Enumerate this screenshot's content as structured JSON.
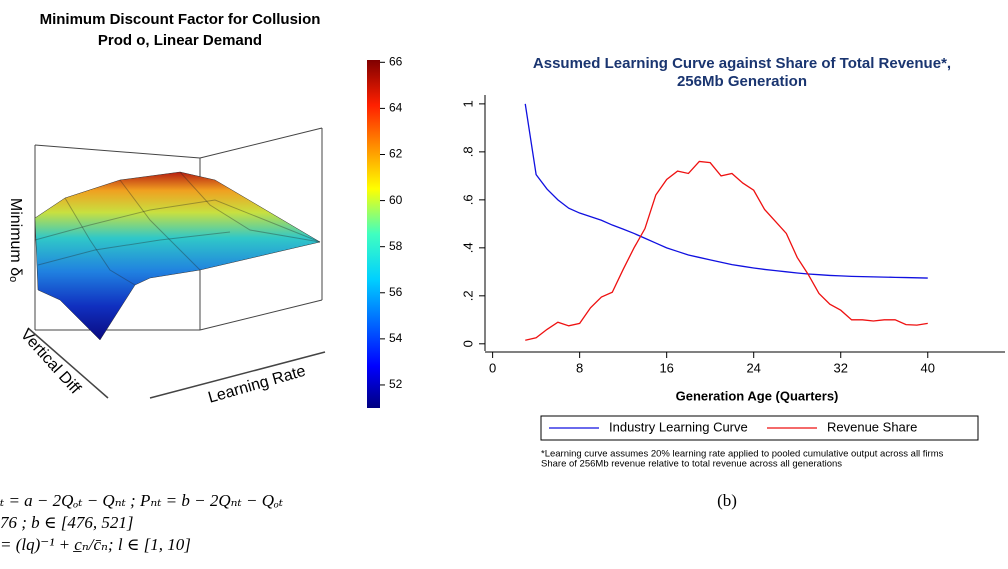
{
  "chart_data": [
    {
      "type": "surface",
      "title": [
        "Minimum Discount Factor for Collusion",
        "Prod o, Linear Demand"
      ],
      "zlabel": "Minimum δₒ",
      "xlabel": "Vertical Diff",
      "ylabel": "Learning Rate",
      "colorbar": {
        "lim": [
          51,
          66.1
        ],
        "ticks": [
          52,
          54,
          56,
          58,
          60,
          62,
          64,
          66
        ]
      }
    },
    {
      "type": "line",
      "title": [
        "Assumed Learning Curve against Share of Total Revenue*,",
        "256Mb Generation"
      ],
      "xlabel": "Generation Age (Quarters)",
      "x": [
        3,
        4,
        5,
        6,
        7,
        8,
        9,
        10,
        11,
        12,
        13,
        14,
        15,
        16,
        17,
        18,
        19,
        20,
        21,
        22,
        23,
        24,
        25,
        26,
        27,
        28,
        29,
        30,
        31,
        32,
        33,
        34,
        35,
        36,
        37,
        38,
        39,
        40
      ],
      "series": [
        {
          "name": "Industry Learning Curve",
          "color": "#1010e0",
          "values": [
            1.0,
            0.705,
            0.645,
            0.6,
            0.565,
            0.545,
            0.53,
            0.515,
            0.495,
            0.478,
            0.46,
            0.44,
            0.42,
            0.4,
            0.385,
            0.37,
            0.36,
            0.35,
            0.34,
            0.33,
            0.323,
            0.316,
            0.31,
            0.305,
            0.3,
            0.295,
            0.291,
            0.288,
            0.285,
            0.283,
            0.281,
            0.28,
            0.279,
            0.278,
            0.277,
            0.276,
            0.275,
            0.274
          ]
        },
        {
          "name": "Revenue Share",
          "color": "#ee1111",
          "values": [
            0.015,
            0.025,
            0.06,
            0.09,
            0.075,
            0.085,
            0.15,
            0.195,
            0.215,
            0.31,
            0.4,
            0.48,
            0.62,
            0.685,
            0.72,
            0.71,
            0.76,
            0.755,
            0.7,
            0.71,
            0.67,
            0.64,
            0.56,
            0.51,
            0.46,
            0.36,
            0.29,
            0.21,
            0.165,
            0.14,
            0.1,
            0.1,
            0.095,
            0.1,
            0.1,
            0.08,
            0.078,
            0.085
          ]
        }
      ],
      "xlim": [
        -0.7,
        47.1
      ],
      "xticks": [
        0,
        8,
        16,
        24,
        32,
        40
      ],
      "ylim": [
        -0.03,
        1.037
      ],
      "yticks": [
        0,
        {
          "value": 0.2,
          "label": ".2"
        },
        {
          "value": 0.4,
          "label": ".4"
        },
        {
          "value": 0.6,
          "label": ".6"
        },
        {
          "value": 0.8,
          "label": ".8"
        },
        1
      ],
      "notes": [
        "*Learning curve assumes 20% learning rate applied to pooled cumulative output across all firms",
        "Share of 256Mb revenue relative to total revenue across all generations"
      ]
    }
  ],
  "caption": "(b)",
  "equations": [
    "ₜ = a − 2Qₒₜ − Qₙₜ ; Pₙₜ = b − 2Qₙₜ − Qₒₜ",
    "76 ; b ∈ [476, 521]",
    "= (lq)⁻¹ + c̲ₙ/c̄ₙ; l ∈ [1, 10]"
  ]
}
